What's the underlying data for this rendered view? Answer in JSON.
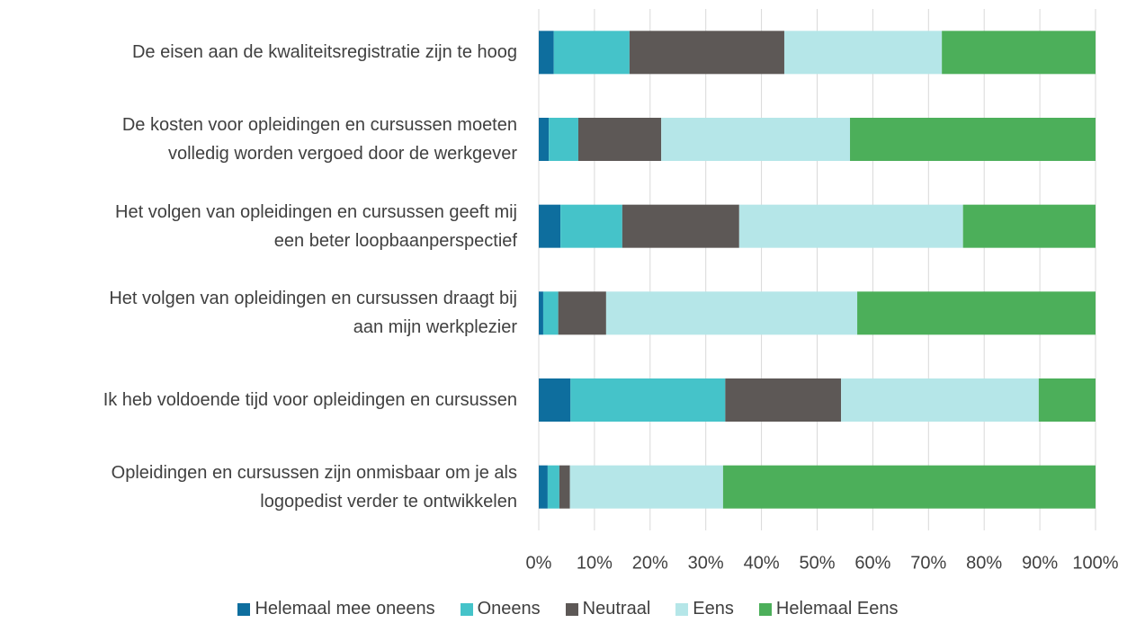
{
  "chart_data": {
    "type": "stacked-bar-horizontal",
    "categories": [
      "De eisen aan de kwaliteitsregistratie zijn te hoog",
      "De kosten voor opleidingen en cursussen moeten\nvolledig worden vergoed door de werkgever",
      "Het volgen van opleidingen en cursussen geeft mij\neen beter loopbaanperspectief",
      "Het volgen van opleidingen en cursussen draagt bij\naan mijn werkplezier",
      "Ik heb voldoende tijd voor opleidingen en cursussen",
      "Opleidingen en cursussen zijn onmisbaar om je als\nlogopedist verder te ontwikkelen"
    ],
    "series": [
      {
        "name": "Helemaal mee oneens",
        "color": "#0e6e9e",
        "values": [
          2.7,
          1.8,
          3.9,
          0.8,
          5.7,
          1.6
        ]
      },
      {
        "name": "Oneens",
        "color": "#45c3c9",
        "values": [
          13.6,
          5.3,
          11.1,
          2.7,
          27.8,
          2.1
        ]
      },
      {
        "name": "Neutraal",
        "color": "#5d5856",
        "values": [
          27.8,
          14.9,
          21.0,
          8.6,
          20.8,
          1.9
        ]
      },
      {
        "name": "Eens",
        "color": "#b5e6e8",
        "values": [
          28.3,
          33.9,
          40.2,
          45.1,
          35.5,
          27.5
        ]
      },
      {
        "name": "Helemaal Eens",
        "color": "#4caf5a",
        "values": [
          27.6,
          44.1,
          23.8,
          42.8,
          10.2,
          66.9
        ]
      }
    ],
    "xlim": [
      0,
      100
    ],
    "xticks": [
      {
        "value": 0,
        "label": "0%"
      },
      {
        "value": 10,
        "label": "10%"
      },
      {
        "value": 20,
        "label": "20%"
      },
      {
        "value": 30,
        "label": "30%"
      },
      {
        "value": 40,
        "label": "40%"
      },
      {
        "value": 50,
        "label": "50%"
      },
      {
        "value": 60,
        "label": "60%"
      },
      {
        "value": 70,
        "label": "70%"
      },
      {
        "value": 80,
        "label": "80%"
      },
      {
        "value": 90,
        "label": "90%"
      },
      {
        "value": 100,
        "label": "100%"
      }
    ],
    "grid": true,
    "legend": "bottom"
  }
}
